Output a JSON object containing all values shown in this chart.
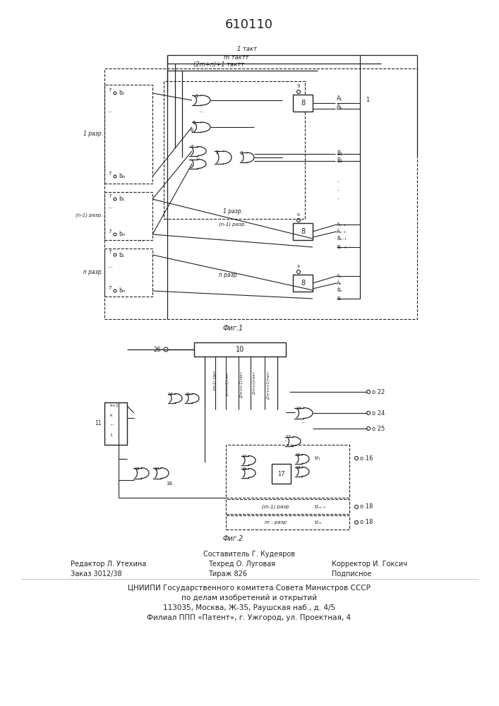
{
  "title": "610110",
  "bg_color": "#ffffff",
  "line_color": "#222222",
  "fig1_label": "Фиг.1",
  "fig2_label": "Фиг.2",
  "timing1": "1 такт",
  "timing2": "m тактт",
  "timing3": "(2m+n)+1 тактт",
  "label_1razr": "1 разр.",
  "label_n1razr": "(n-1) разр.",
  "label_nrazr": "n разр.",
  "label_1razr_inner": "1 разр.",
  "label_n1razr_inner": "(n-1) разр.",
  "label_nrazr_inner": "n разр",
  "right_labels_1": [
    "A₁",
    "Ā₁",
    "B̄₁",
    "B₁"
  ],
  "right_labels_n1": [
    "Aₙ₋₁",
    "Āₙ₋₁",
    "B̄ₙ₋₁",
    "Bₙ₋₁"
  ],
  "right_labels_n": [
    "Aₙ",
    "Āₙ",
    "B̄ₙ",
    "Bₙ"
  ],
  "footer_composer": "Составитель Г. Кудеяров",
  "footer_editor": "Редактор Л. Утехина",
  "footer_tech": "Техред О. Луговая",
  "footer_corrector": "Корректор И. Гоксич",
  "footer_order": "Заказ 3012/38",
  "footer_print": "Тираж 826",
  "footer_sub": "Подписное",
  "footer_org1": "ЦНИИПИ Государственного комитета Совета Министров СССР",
  "footer_org2": "по делам изобретений и открытий",
  "footer_addr1": "113035, Москва, Ж-35, Раушская наб., д. 4/5",
  "footer_addr2": "Филиал ППП «Патент», г. Ужгород, ул. Проектная, 4"
}
